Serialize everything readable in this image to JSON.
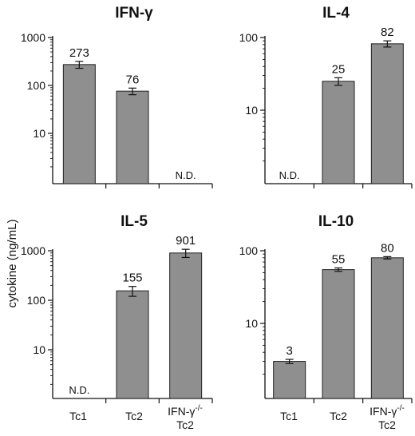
{
  "ylabel": "cytokine (ng/mL)",
  "colors": {
    "bar_fill": "#8f8f8f",
    "bar_stroke": "#222222",
    "axis": "#111111"
  },
  "chart_data": [
    {
      "type": "bar",
      "title": "IFN-γ",
      "yscale": "log",
      "ylim": [
        1,
        1000
      ],
      "yticks": [
        "1000",
        "100",
        "10"
      ],
      "categories": [
        "Tc1",
        "Tc2",
        "IFN-γ-/- Tc2"
      ],
      "values": [
        273,
        76,
        null
      ],
      "errors": [
        45,
        12,
        null
      ],
      "labels": [
        "273",
        "76",
        "N.D."
      ]
    },
    {
      "type": "bar",
      "title": "IL-4",
      "yscale": "log",
      "ylim": [
        1,
        100
      ],
      "yticks": [
        "100",
        "10"
      ],
      "categories": [
        "Tc1",
        "Tc2",
        "IFN-γ-/- Tc2"
      ],
      "values": [
        null,
        25,
        82
      ],
      "errors": [
        null,
        3,
        8
      ],
      "labels": [
        "N.D.",
        "25",
        "82"
      ]
    },
    {
      "type": "bar",
      "title": "IL-5",
      "yscale": "log",
      "ylim": [
        1,
        1000
      ],
      "yticks": [
        "1000",
        "100",
        "10"
      ],
      "categories": [
        "Tc1",
        "Tc2",
        "IFN-γ-/- Tc2"
      ],
      "values": [
        null,
        155,
        901
      ],
      "errors": [
        null,
        35,
        170
      ],
      "labels": [
        "N.D.",
        "155",
        "901"
      ]
    },
    {
      "type": "bar",
      "title": "IL-10",
      "yscale": "log",
      "ylim": [
        1,
        100
      ],
      "yticks": [
        "100",
        "10"
      ],
      "categories": [
        "Tc1",
        "Tc2",
        "IFN-γ-/- Tc2"
      ],
      "values": [
        3,
        55,
        80
      ],
      "errors": [
        0.2,
        3,
        3
      ],
      "labels": [
        "3",
        "55",
        "80"
      ]
    }
  ],
  "xaxis": {
    "tick_labels": [
      "Tc1",
      "Tc2",
      "IFN-γ",
      "-/-",
      "Tc2"
    ]
  }
}
